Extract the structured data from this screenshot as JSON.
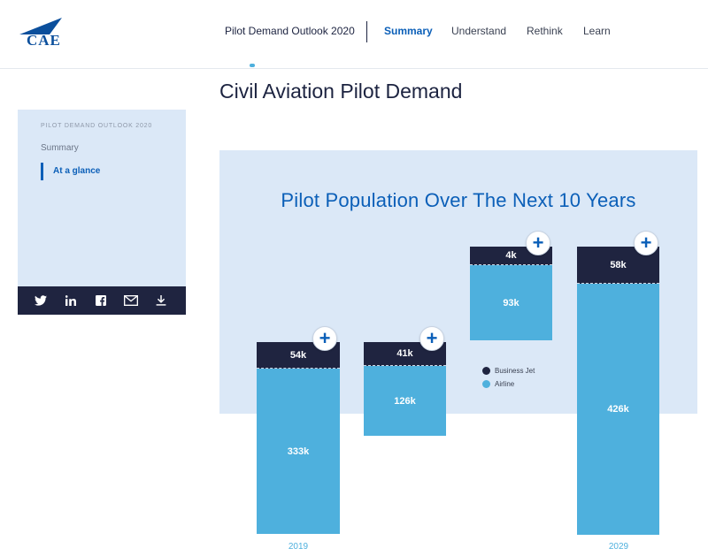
{
  "header": {
    "logo_text": "CAE",
    "brand": "Pilot Demand Outlook 2020",
    "nav": [
      {
        "label": "Summary",
        "active": true
      },
      {
        "label": "Understand",
        "active": false
      },
      {
        "label": "Rethink",
        "active": false
      },
      {
        "label": "Learn",
        "active": false
      }
    ]
  },
  "page": {
    "title": "Civil Aviation Pilot Demand"
  },
  "sidebar": {
    "heading": "PILOT DEMAND OUTLOOK 2020",
    "items": [
      "Summary"
    ],
    "active_item": "At a glance",
    "share_icons": [
      "twitter-icon",
      "linkedin-icon",
      "facebook-icon",
      "email-icon",
      "download-icon"
    ]
  },
  "chart_data": {
    "type": "bar",
    "title": "Pilot Population Over The Next 10 Years",
    "categories": [
      "2019",
      "",
      "",
      "2029"
    ],
    "series": [
      {
        "name": "Business Jet",
        "values": [
          54,
          41,
          4,
          58
        ],
        "labels": [
          "54k",
          "41k",
          "4k",
          "58k"
        ]
      },
      {
        "name": "Airline",
        "values": [
          333,
          126,
          93,
          426
        ],
        "labels": [
          "333k",
          "126k",
          "93k",
          "426k"
        ]
      }
    ],
    "colors": {
      "Business Jet": "#1f2440",
      "Airline": "#4eb0dd"
    },
    "legend_placement": "center",
    "waterfall": true
  }
}
